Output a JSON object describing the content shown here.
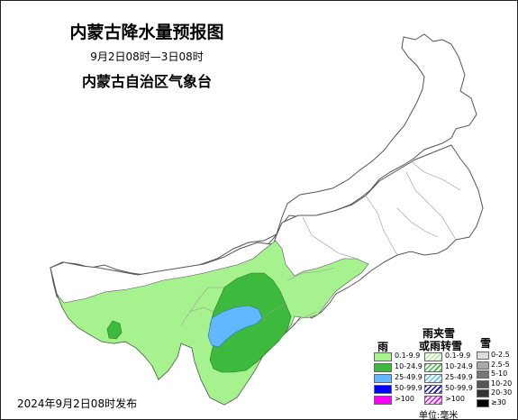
{
  "title": "内蒙古降水量预报图",
  "period": "9月2日08时—3日08时",
  "agency": "内蒙古自治区气象台",
  "publish_time": "2024年9月2日08时发布",
  "legend": {
    "rain": {
      "heading": "雨",
      "items": [
        {
          "label": "0.1-9.9",
          "color": "#a6f28f"
        },
        {
          "label": "10-24.9",
          "color": "#3dba3d"
        },
        {
          "label": "25-49.9",
          "color": "#61b8ff"
        },
        {
          "label": "50-99.9",
          "color": "#0000fe"
        },
        {
          "label": ">100",
          "color": "#fa00fa"
        }
      ]
    },
    "sleet": {
      "heading_line1": "雨夹雪",
      "heading_line2": "或雨转雪",
      "items": [
        {
          "label": "0.1-9.9",
          "color": "#a6f28f"
        },
        {
          "label": "10-24.9",
          "color": "#3dba3d"
        },
        {
          "label": "25-49.9",
          "color": "#61b8ff"
        },
        {
          "label": "50-99.9",
          "color": "#0000fe"
        },
        {
          "label": ">100",
          "color": "#fa00fa"
        }
      ]
    },
    "snow": {
      "heading": "雪",
      "items": [
        {
          "label": "0-2.5",
          "color": "#dcdcdc"
        },
        {
          "label": "2.5-5",
          "color": "#a9a9a9"
        },
        {
          "label": "5-10",
          "color": "#777777"
        },
        {
          "label": "10-20",
          "color": "#555555"
        },
        {
          "label": "20-30",
          "color": "#333333"
        },
        {
          "label": "≥30",
          "color": "#000000"
        }
      ]
    },
    "unit": "单位:毫米"
  },
  "region_colors": {
    "land": "#ffffff",
    "boundary": "#555555",
    "subboundary": "#999999"
  }
}
